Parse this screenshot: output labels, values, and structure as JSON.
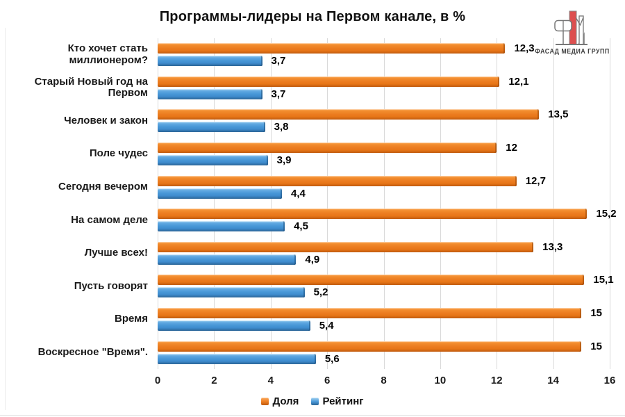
{
  "title": "Программы-лидеры на Первом канале, в %",
  "logo": {
    "text": "ФАСАД МЕДИА ГРУПП",
    "accent_color": "#dd4f4f",
    "outline_color": "#777777"
  },
  "chart_data": {
    "type": "bar",
    "orientation": "horizontal",
    "title": "Программы-лидеры на Первом канале, в %",
    "categories": [
      "Кто хочет стать миллионером?",
      "Старый Новый год на Первом",
      "Человек и закон",
      "Поле чудес",
      "Сегодня вечером",
      "На самом деле",
      "Лучше всех!",
      "Пусть говорят",
      "Время",
      "Воскресное \"Время\"."
    ],
    "series": [
      {
        "name": "Доля",
        "color": "#ED7D23",
        "values": [
          12.3,
          12.1,
          13.5,
          12,
          12.7,
          15.2,
          13.3,
          15.1,
          15,
          15
        ],
        "labels": [
          "12,3",
          "12,1",
          "13,5",
          "12",
          "12,7",
          "15,2",
          "13,3",
          "15,1",
          "15",
          "15"
        ]
      },
      {
        "name": "Рейтинг",
        "color": "#4A9AD8",
        "values": [
          3.7,
          3.7,
          3.8,
          3.9,
          4.4,
          4.5,
          4.9,
          5.2,
          5.4,
          5.6
        ],
        "labels": [
          "3,7",
          "3,7",
          "3,8",
          "3,9",
          "4,4",
          "4,5",
          "4,9",
          "5,2",
          "5,4",
          "5,6"
        ]
      }
    ],
    "xlim": [
      0,
      16
    ],
    "xticks": [
      0,
      2,
      4,
      6,
      8,
      10,
      12,
      14,
      16
    ],
    "grid": "vertical",
    "gridline_color": "#d9d9d9",
    "legend_position": "bottom",
    "value_decimal_separator": ","
  }
}
